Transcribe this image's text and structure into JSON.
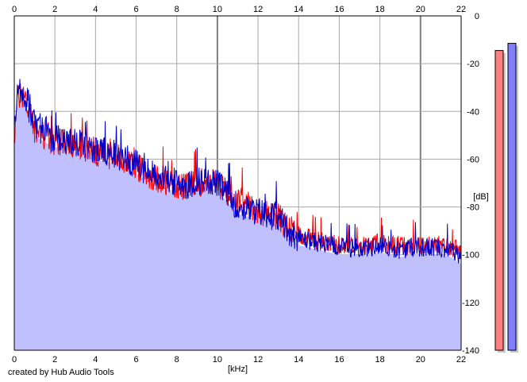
{
  "chart_data": {
    "type": "area",
    "title": "",
    "xlabel": "[kHz]",
    "ylabel": "[dB]",
    "xlim": [
      0,
      22
    ],
    "ylim": [
      -140,
      0
    ],
    "x_ticks": [
      "0",
      "2",
      "4",
      "6",
      "8",
      "10",
      "12",
      "14",
      "16",
      "18",
      "20",
      "22"
    ],
    "y_ticks": [
      "0",
      "-20",
      "-40",
      "-60",
      "-80",
      "-100",
      "-120",
      "-140"
    ],
    "grid": true,
    "fill_color": "#c0c0ff",
    "series": [
      {
        "color": "#ff0000",
        "x": [
          0,
          0.2,
          0.4,
          0.6,
          0.8,
          1,
          1.5,
          2,
          2.5,
          3,
          3.5,
          4,
          4.5,
          5,
          5.5,
          6,
          6.5,
          7,
          7.5,
          8,
          8.5,
          9,
          9.5,
          10,
          10.5,
          11,
          11.5,
          12,
          12.5,
          13,
          13.5,
          14,
          14.5,
          15,
          15.5,
          16,
          16.5,
          17,
          17.5,
          18,
          18.5,
          19,
          19.5,
          20,
          20.5,
          21,
          21.5,
          22
        ],
        "y": [
          -50,
          -33,
          -32,
          -36,
          -42,
          -47,
          -50,
          -52,
          -53,
          -54,
          -55,
          -57,
          -58,
          -59,
          -61,
          -63,
          -66,
          -68,
          -69,
          -71,
          -72,
          -70,
          -69,
          -70,
          -74,
          -78,
          -80,
          -81,
          -83,
          -84,
          -89,
          -92,
          -93,
          -94,
          -95,
          -96,
          -96,
          -96,
          -96,
          -95,
          -96,
          -96,
          -96,
          -96,
          -96,
          -96,
          -97,
          -98
        ]
      },
      {
        "color": "#0000cc",
        "x": [
          0,
          0.2,
          0.4,
          0.6,
          0.8,
          1,
          1.5,
          2,
          2.5,
          3,
          3.5,
          4,
          4.5,
          5,
          5.5,
          6,
          6.5,
          7,
          7.5,
          8,
          8.5,
          9,
          9.5,
          10,
          10.5,
          11,
          11.5,
          12,
          12.5,
          13,
          13.5,
          14,
          14.5,
          15,
          15.5,
          16,
          16.5,
          17,
          17.5,
          18,
          18.5,
          19,
          19.5,
          20,
          20.5,
          21,
          21.5,
          22
        ],
        "y": [
          -48,
          -31,
          -30,
          -34,
          -40,
          -45,
          -49,
          -51,
          -52,
          -53,
          -54,
          -56,
          -57,
          -58,
          -60,
          -62,
          -65,
          -67,
          -68,
          -70,
          -71,
          -69,
          -69,
          -70,
          -75,
          -80,
          -81,
          -82,
          -83,
          -85,
          -90,
          -93,
          -94,
          -95,
          -96,
          -97,
          -97,
          -97,
          -97,
          -96,
          -97,
          -98,
          -97,
          -97,
          -97,
          -97,
          -98,
          -101
        ]
      }
    ],
    "level_meters": [
      {
        "color": "#ff8080",
        "level_db": -14.5
      },
      {
        "color": "#8080ff",
        "level_db": -11.5
      }
    ]
  },
  "footer_text": "created by Hub Audio Tools"
}
